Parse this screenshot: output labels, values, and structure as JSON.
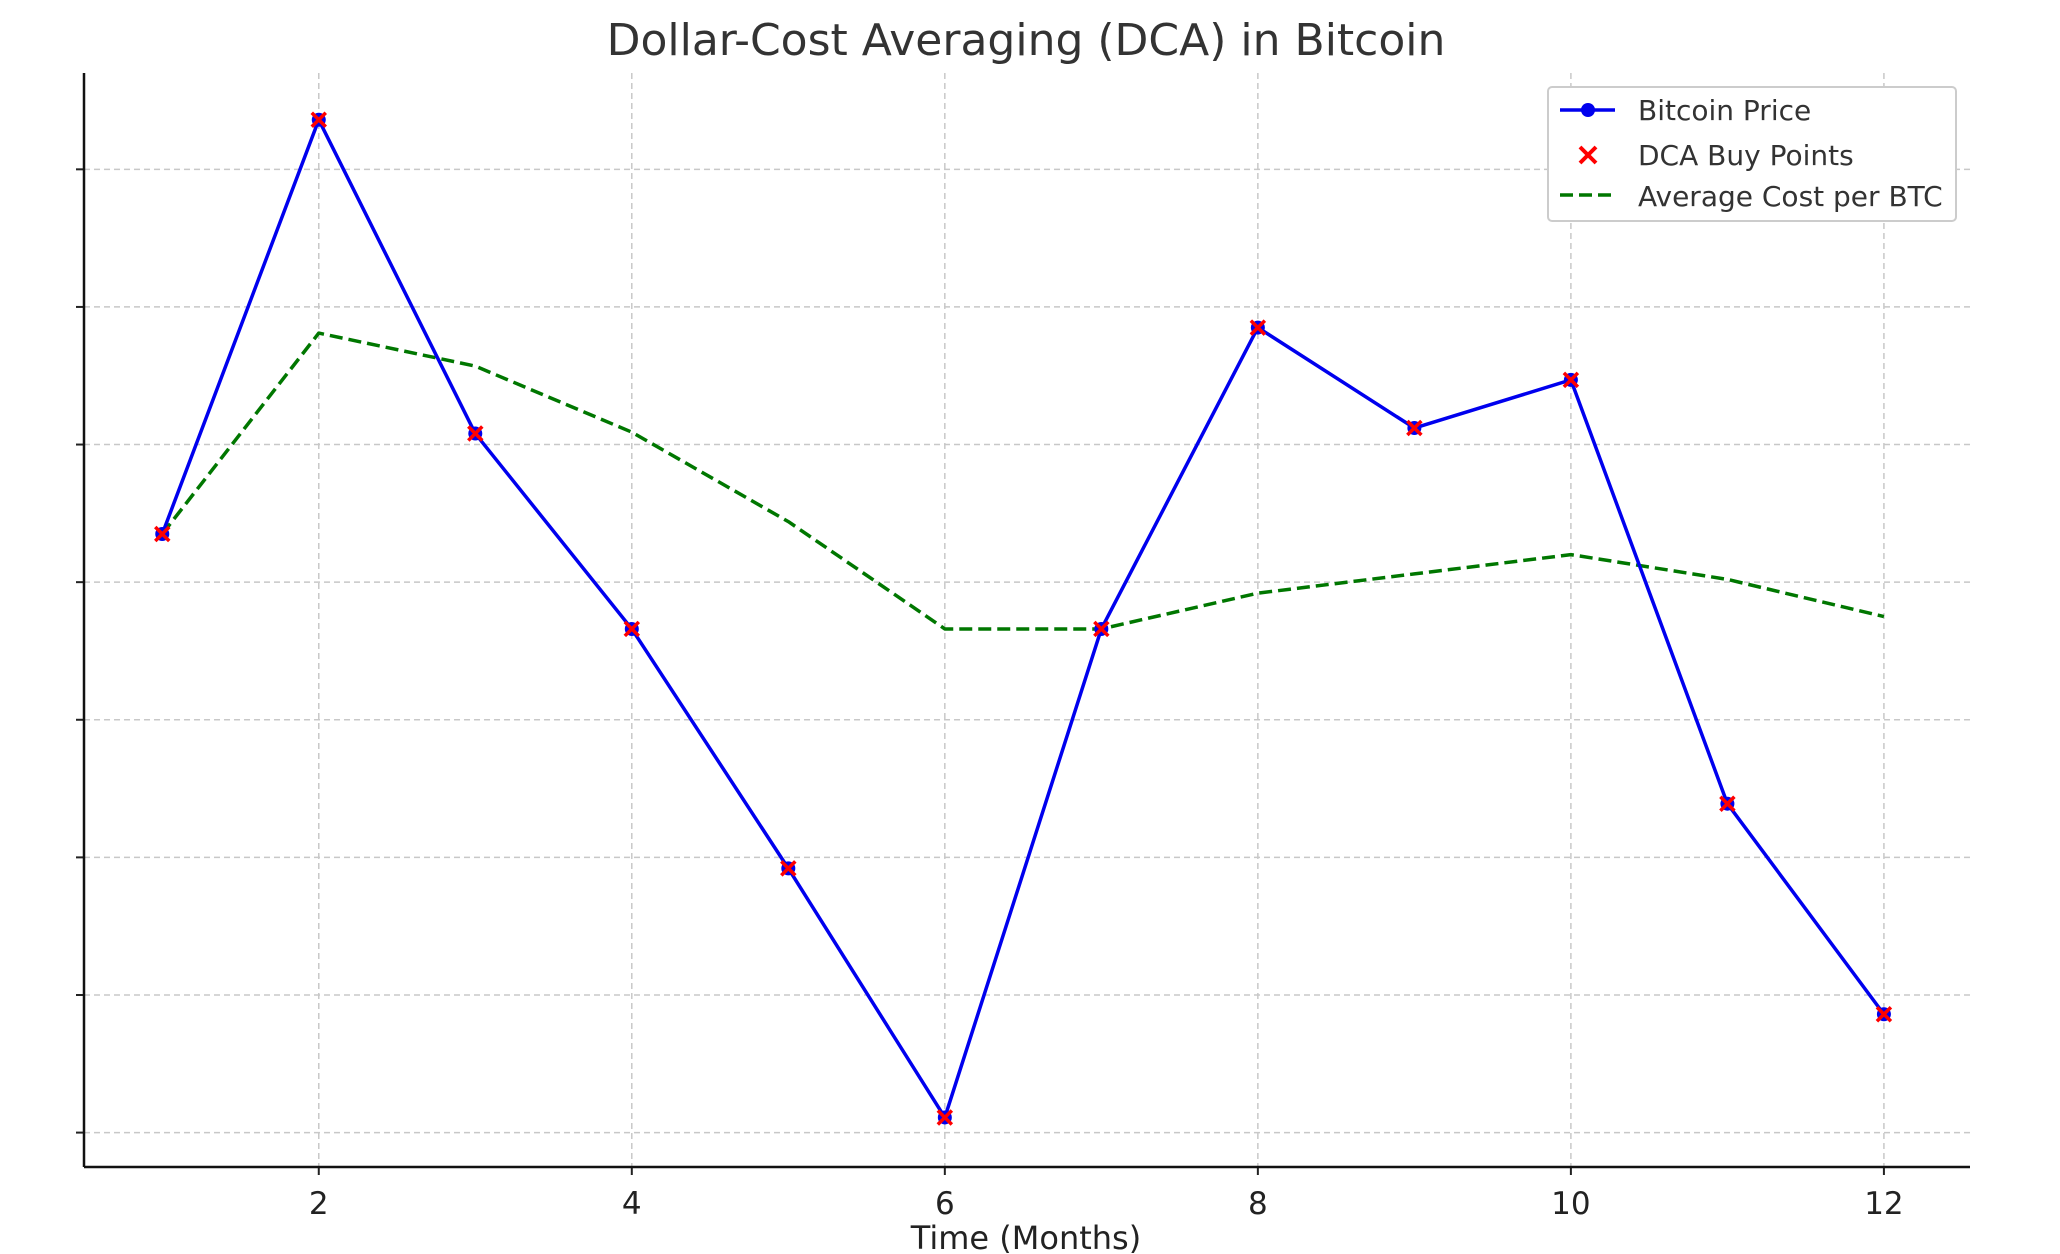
{
  "chart_data": {
    "type": "line",
    "title": "Dollar-Cost Averaging (DCA) in Bitcoin",
    "xlabel": "Time (Months)",
    "ylabel": "",
    "x": [
      1,
      2,
      3,
      4,
      5,
      6,
      7,
      8,
      9,
      10,
      11,
      12
    ],
    "xlim": [
      0.5,
      12.55
    ],
    "ylim": [
      -0.25,
      7.7
    ],
    "x_ticks": [
      2,
      4,
      6,
      8,
      10,
      12
    ],
    "x_tick_labels": [
      "2",
      "4",
      "6",
      "8",
      "10",
      "12"
    ],
    "y_ticks": [
      0,
      1,
      2,
      3,
      4,
      5,
      6,
      7
    ],
    "y_tick_labels_shown": false,
    "grid": true,
    "legend_position": "top-right",
    "series": [
      {
        "name": "Bitcoin Price",
        "style": "line-with-dot-marker",
        "color": "#0000ee",
        "values": [
          4.35,
          7.36,
          5.08,
          3.66,
          1.92,
          0.11,
          3.66,
          5.85,
          5.12,
          5.47,
          2.39,
          0.86
        ]
      },
      {
        "name": "DCA Buy Points",
        "style": "x-markers",
        "color": "#ff0000",
        "values": [
          4.35,
          7.36,
          5.08,
          3.66,
          1.92,
          0.11,
          3.66,
          5.85,
          5.12,
          5.47,
          2.39,
          0.86
        ]
      },
      {
        "name": "Average Cost per BTC",
        "style": "dashed-line",
        "color": "#007700",
        "values": [
          4.35,
          5.81,
          5.57,
          5.09,
          4.44,
          3.66,
          3.66,
          3.92,
          4.06,
          4.2,
          4.02,
          3.75
        ]
      }
    ]
  }
}
